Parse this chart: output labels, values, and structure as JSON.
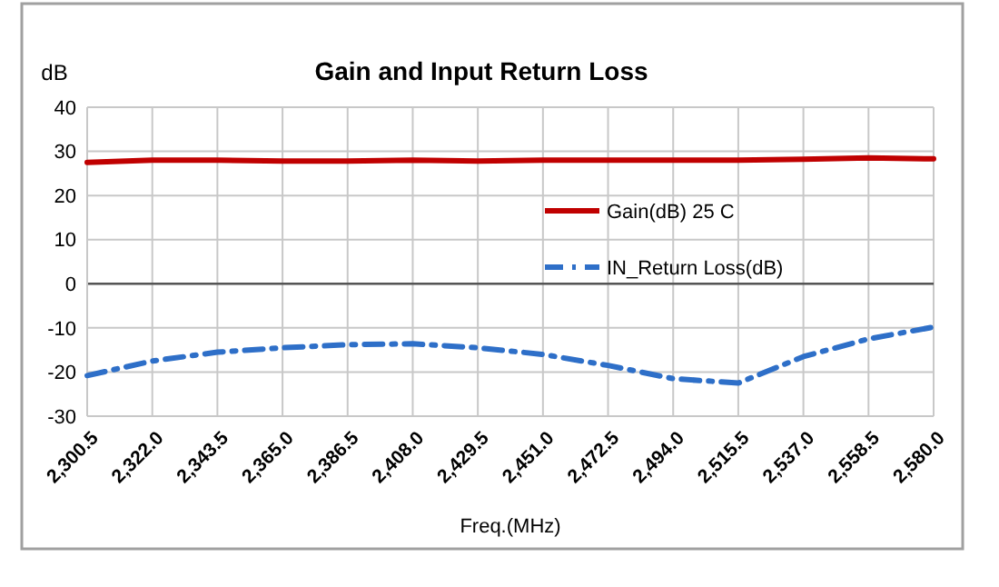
{
  "chart_data": {
    "type": "line",
    "title": "Gain and Input Return Loss",
    "xlabel": "Freq.(MHz)",
    "ylabel": "dB",
    "categories": [
      "2,300.5",
      "2,322.0",
      "2,343.5",
      "2,365.0",
      "2,386.5",
      "2,408.0",
      "2,429.5",
      "2,451.0",
      "2,472.5",
      "2,494.0",
      "2,515.5",
      "2,537.0",
      "2,558.5",
      "2,580.0"
    ],
    "series": [
      {
        "name": "Gain(dB) 25 C",
        "color": "#c00000",
        "line_style": "solid",
        "values": [
          27.5,
          28,
          28,
          27.8,
          27.8,
          28,
          27.8,
          28,
          28,
          28,
          28,
          28.2,
          28.5,
          28.3
        ]
      },
      {
        "name": "IN_Return Loss(dB)",
        "color": "#2e6fc8",
        "line_style": "dashed",
        "values": [
          -20.8,
          -17.5,
          -15.5,
          -14.5,
          -13.8,
          -13.6,
          -14.5,
          -16,
          -18.5,
          -21.5,
          -22.5,
          -16.5,
          -12.5,
          -9.8
        ]
      }
    ],
    "ylim": [
      -30,
      40
    ],
    "yticks": [
      -30,
      -20,
      -10,
      0,
      10,
      20,
      30,
      40
    ],
    "grid": true,
    "legend": "right",
    "marker": "none"
  }
}
